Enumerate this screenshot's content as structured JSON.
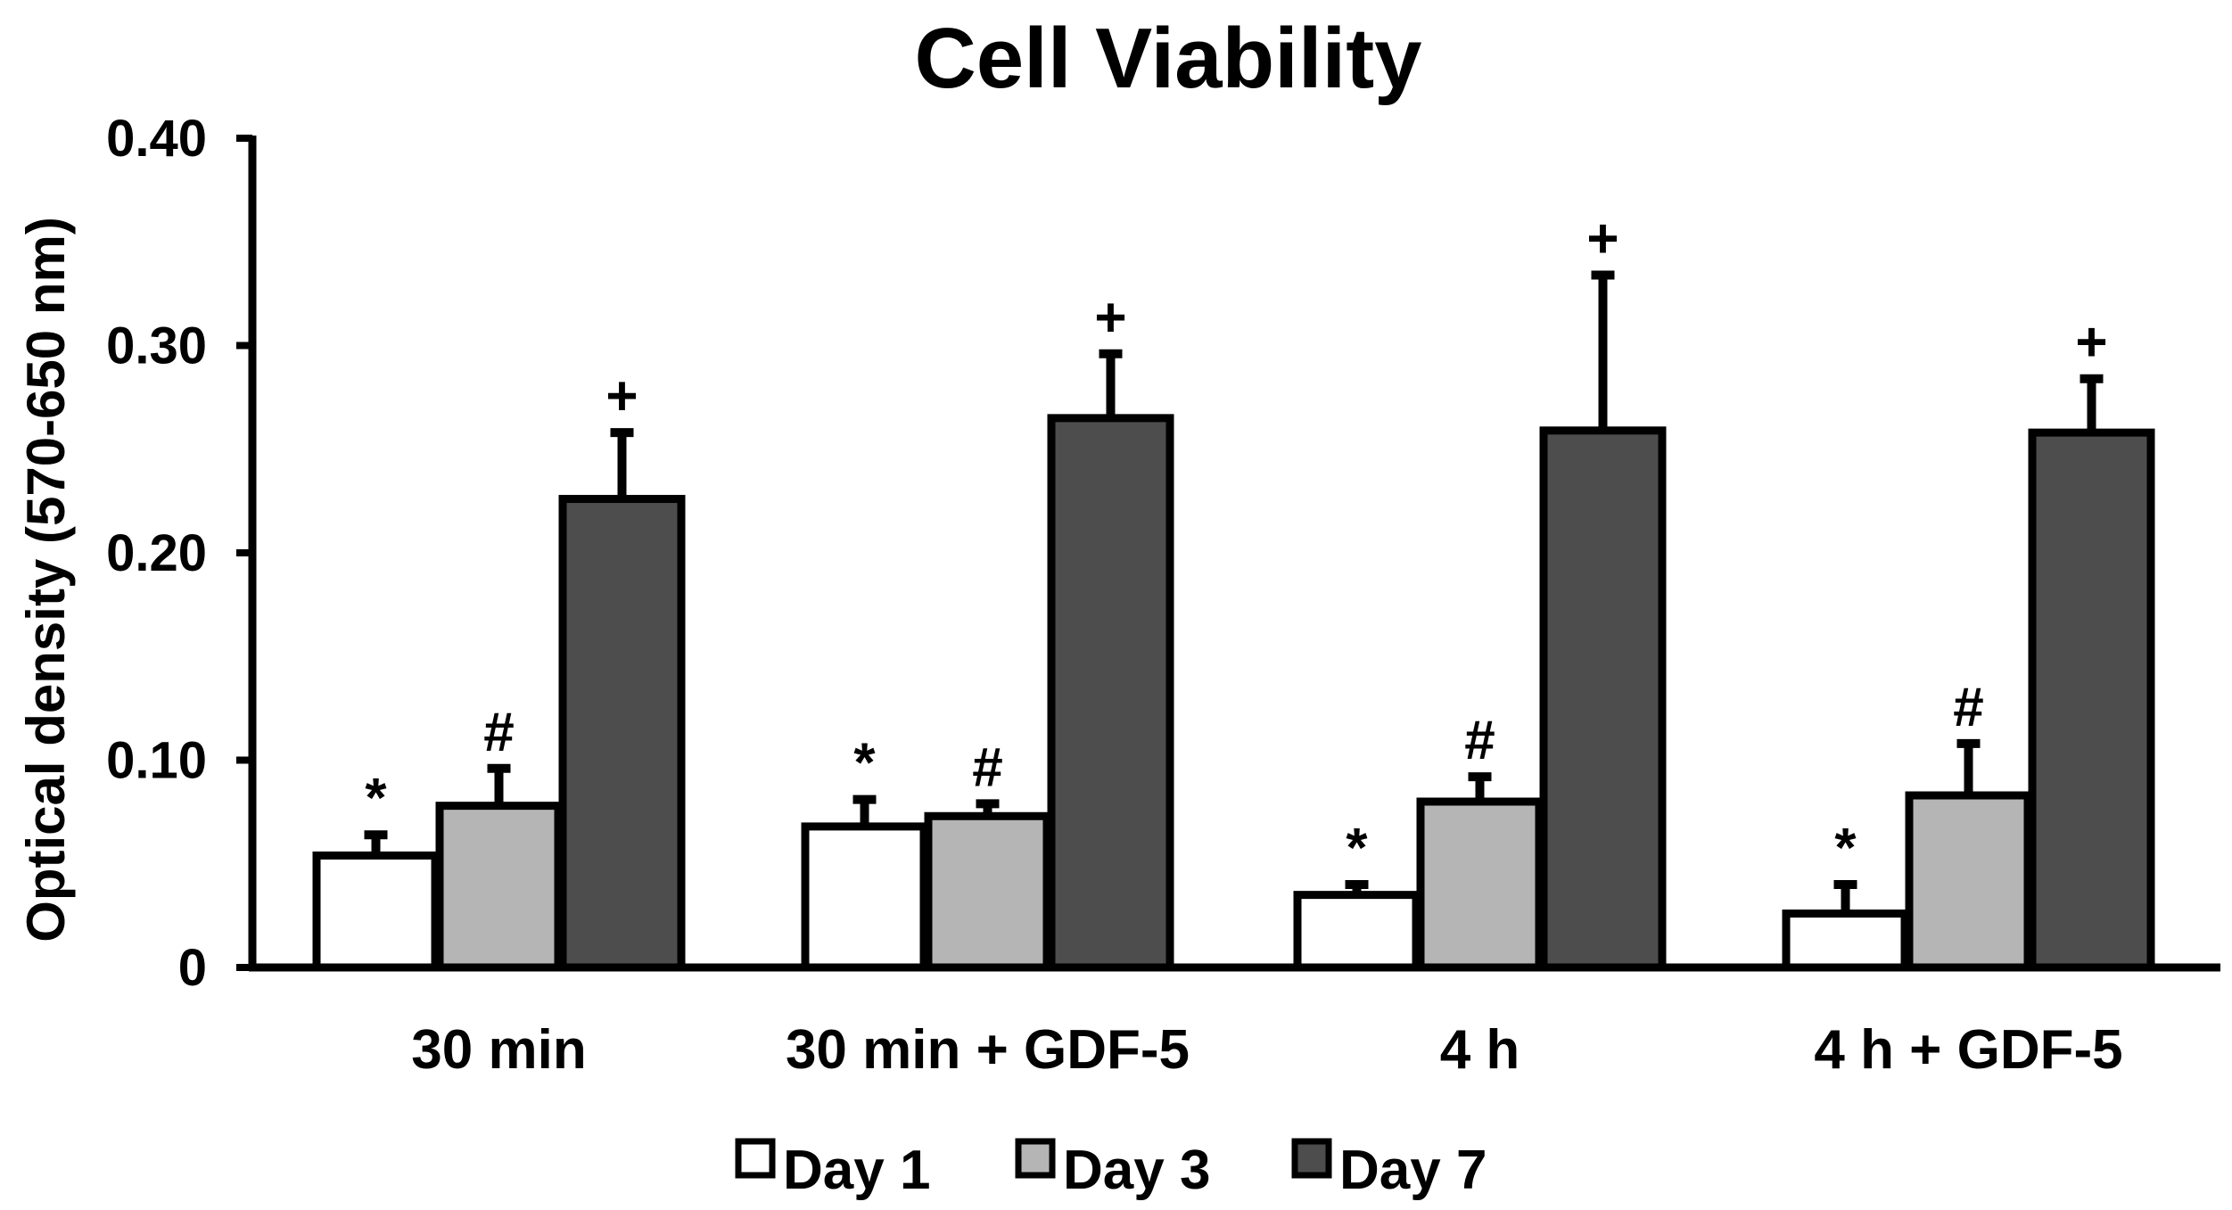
{
  "chart_data": {
    "type": "bar",
    "title": "Cell Viability",
    "xlabel": "",
    "ylabel": "Optical density (570-650 nm)",
    "ylim": [
      0,
      0.4
    ],
    "yticks": [
      0,
      0.1,
      0.2,
      0.3,
      0.4
    ],
    "ytick_labels": [
      "0",
      "0.10",
      "0.20",
      "0.30",
      "0.40"
    ],
    "grid": false,
    "legend_position": "bottom-center",
    "categories": [
      "30 min",
      "30 min + GDF-5",
      "4 h",
      "4 h + GDF-5"
    ],
    "series": [
      {
        "name": "Day 1",
        "color": "#ffffff",
        "values": [
          0.054,
          0.068,
          0.035,
          0.026
        ],
        "errors": [
          0.01,
          0.013,
          0.005,
          0.014
        ],
        "marker": "*"
      },
      {
        "name": "Day 3",
        "color": "#b5b5b5",
        "values": [
          0.078,
          0.073,
          0.08,
          0.083
        ],
        "errors": [
          0.018,
          0.006,
          0.012,
          0.025
        ],
        "marker": "#"
      },
      {
        "name": "Day 7",
        "color": "#4d4d4d",
        "values": [
          0.226,
          0.265,
          0.259,
          0.258
        ],
        "errors": [
          0.032,
          0.031,
          0.075,
          0.026
        ],
        "marker": "+"
      }
    ]
  }
}
